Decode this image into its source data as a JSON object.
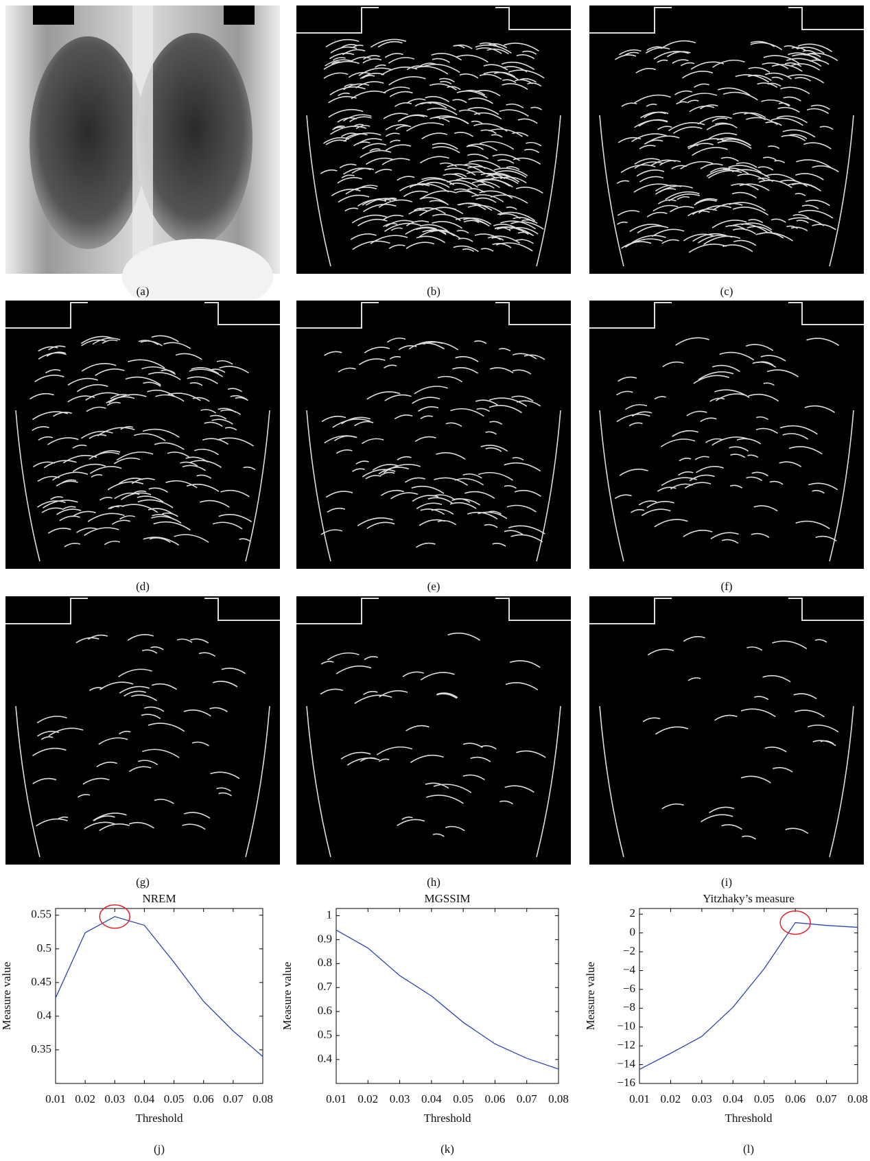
{
  "figure": {
    "panel_labels": [
      "(a)",
      "(b)",
      "(c)",
      "(d)",
      "(e)",
      "(f)",
      "(g)",
      "(h)",
      "(i)"
    ]
  },
  "chart_data": [
    {
      "type": "line",
      "title": "NREM",
      "xlabel": "Threshold",
      "ylabel": "Measure value",
      "caption": "(j)",
      "x": [
        0.01,
        0.02,
        0.03,
        0.04,
        0.05,
        0.06,
        0.07,
        0.08
      ],
      "series": [
        {
          "color": "#2a45b8",
          "values": [
            0.427,
            0.524,
            0.548,
            0.535,
            0.48,
            0.422,
            0.378,
            0.34
          ]
        }
      ],
      "xlim": [
        0.01,
        0.08
      ],
      "xticks": [
        0.01,
        0.02,
        0.03,
        0.04,
        0.05,
        0.06,
        0.07,
        0.08
      ],
      "ylim": [
        0.3,
        0.56
      ],
      "yticks": [
        0.35,
        0.4,
        0.45,
        0.5,
        0.55
      ],
      "highlight_max": true
    },
    {
      "type": "line",
      "title": "MGSSIM",
      "xlabel": "Threshold",
      "ylabel": "Measure value",
      "caption": "(k)",
      "x": [
        0.01,
        0.02,
        0.03,
        0.04,
        0.05,
        0.06,
        0.07,
        0.08
      ],
      "series": [
        {
          "color": "#2a45b8",
          "values": [
            0.94,
            0.865,
            0.75,
            0.665,
            0.555,
            0.465,
            0.405,
            0.36
          ]
        }
      ],
      "xlim": [
        0.01,
        0.08
      ],
      "xticks": [
        0.01,
        0.02,
        0.03,
        0.04,
        0.05,
        0.06,
        0.07,
        0.08
      ],
      "ylim": [
        0.3,
        1.03
      ],
      "yticks": [
        0.4,
        0.5,
        0.6,
        0.7,
        0.8,
        0.9,
        1
      ],
      "highlight_max": false
    },
    {
      "type": "line",
      "title": "Yitzhaky’s measure",
      "xlabel": "Threshold",
      "ylabel": "Measure value",
      "caption": "(l)",
      "x": [
        0.01,
        0.02,
        0.03,
        0.04,
        0.05,
        0.06,
        0.07,
        0.08
      ],
      "series": [
        {
          "color": "#2a45b8",
          "values": [
            -14.5,
            -12.8,
            -11,
            -7.9,
            -3.8,
            1.1,
            0.8,
            0.6
          ]
        }
      ],
      "xlim": [
        0.01,
        0.08
      ],
      "xticks": [
        0.01,
        0.02,
        0.03,
        0.04,
        0.05,
        0.06,
        0.07,
        0.08
      ],
      "ylim": [
        -16,
        2.6
      ],
      "yticks": [
        {
          "value": -16,
          "label": "−16"
        },
        {
          "value": -14,
          "label": "−14"
        },
        {
          "value": -12,
          "label": "−12"
        },
        {
          "value": -10,
          "label": "−10"
        },
        {
          "value": -8,
          "label": "−8"
        },
        {
          "value": -6,
          "label": "−6"
        },
        {
          "value": -4,
          "label": "−4"
        },
        {
          "value": -2,
          "label": "−2"
        },
        0,
        2
      ],
      "highlight_max": true
    }
  ]
}
